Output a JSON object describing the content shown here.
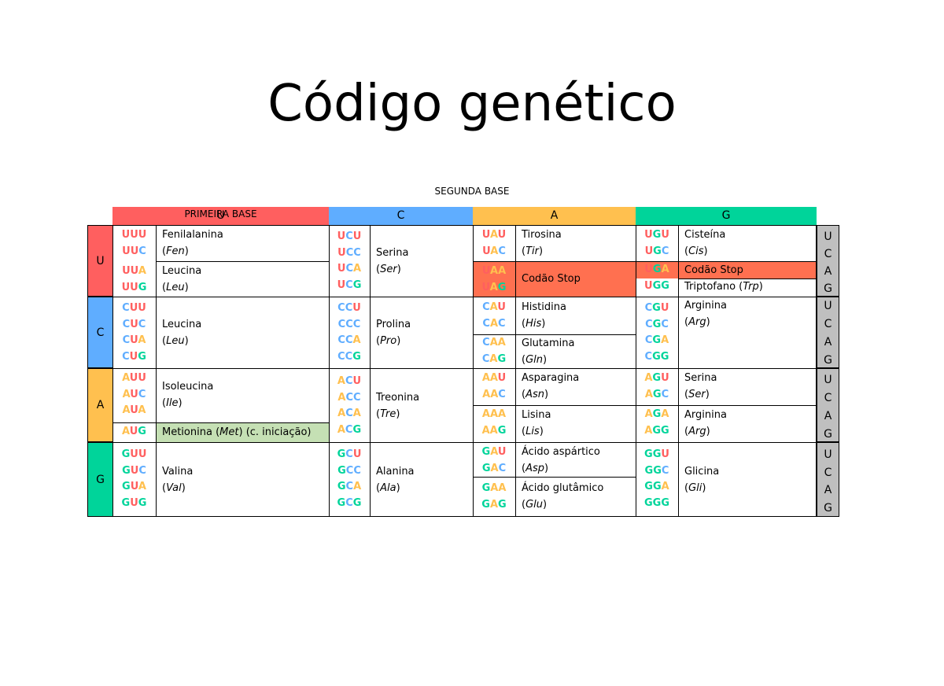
{
  "title": "Código genético",
  "segunda_label": "SEGUNDA BASE",
  "primeira_label": "PRIMEIRA BASE",
  "colors": {
    "U": "#ff5f5f",
    "C": "#5fadff",
    "A": "#ffc04f",
    "G": "#00d49a",
    "met": "#c5e0b4",
    "stop": "#ff7050",
    "third": "#bfbfbf"
  },
  "col_headers": [
    "U",
    "C",
    "A",
    "G"
  ],
  "row_headers": [
    "U",
    "C",
    "A",
    "G"
  ],
  "third_base": [
    "U",
    "C",
    "A",
    "G"
  ],
  "amino": {
    "fen": "Fenilalanina",
    "fen_abbr": "Fen",
    "leu": "Leucina",
    "leu_abbr": "Leu",
    "ser": "Serina",
    "ser_abbr": "Ser",
    "tir": "Tirosina",
    "tir_abbr": "Tir",
    "cis": "Cisteína",
    "cis_abbr": "Cis",
    "stop": "Codão Stop",
    "trp": "Triptofano",
    "trp_abbr": "Trp",
    "pro": "Prolina",
    "pro_abbr": "Pro",
    "his": "Histidina",
    "his_abbr": "His",
    "gln": "Glutamina",
    "gln_abbr": "Gln",
    "arg": "Arginina",
    "arg_abbr": "Arg",
    "ile": "Isoleucina",
    "ile_abbr": "Ile",
    "met": "Metionina",
    "met_abbr": "Met",
    "met_note": "(c. iniciação)",
    "tre": "Treonina",
    "tre_abbr": "Tre",
    "asn": "Asparagina",
    "asn_abbr": "Asn",
    "lis": "Lisina",
    "lis_abbr": "Lis",
    "val": "Valina",
    "val_abbr": "Val",
    "ala": "Alanina",
    "ala_abbr": "Ala",
    "asp": "Ácido aspártico",
    "asp_abbr": "Asp",
    "glu": "Ácido glutâmico",
    "glu_abbr": "Glu",
    "gli": "Glicina",
    "gli_abbr": "Gli"
  }
}
